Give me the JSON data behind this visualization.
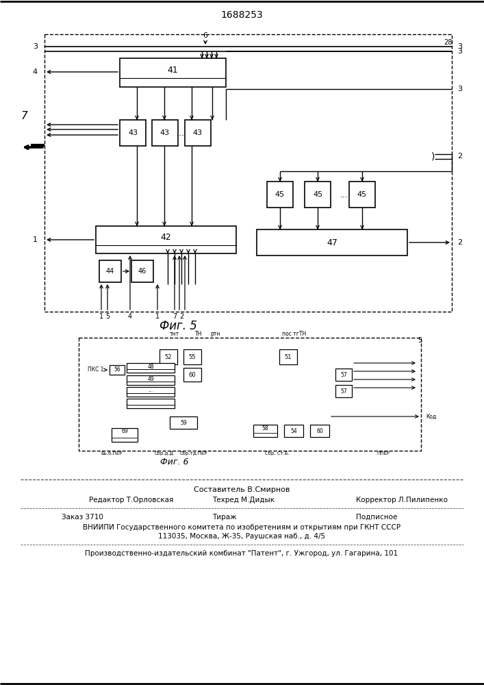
{
  "title": "1688253",
  "fig5_label": "Фиг. 5",
  "fig6_label": "Фиг. 6",
  "background": "#ffffff",
  "footer_lines": [
    "Составитель В.Смирнов",
    "Редактор Т.Орловская",
    "Техред М.Дидык",
    "Корректор Л.Пилипенко",
    "Заказ 3710",
    "Тираж",
    "Подписное",
    "ВНИИПИ Государственного комитета по изобретениям и открытиям при ГКНТ СССР",
    "113035, Москва, Ж-35, Раушская наб., д. 4/5",
    "Производственно-издательский комбинат \"Патент\", г. Ужгород, ул. Гагарина, 101"
  ]
}
